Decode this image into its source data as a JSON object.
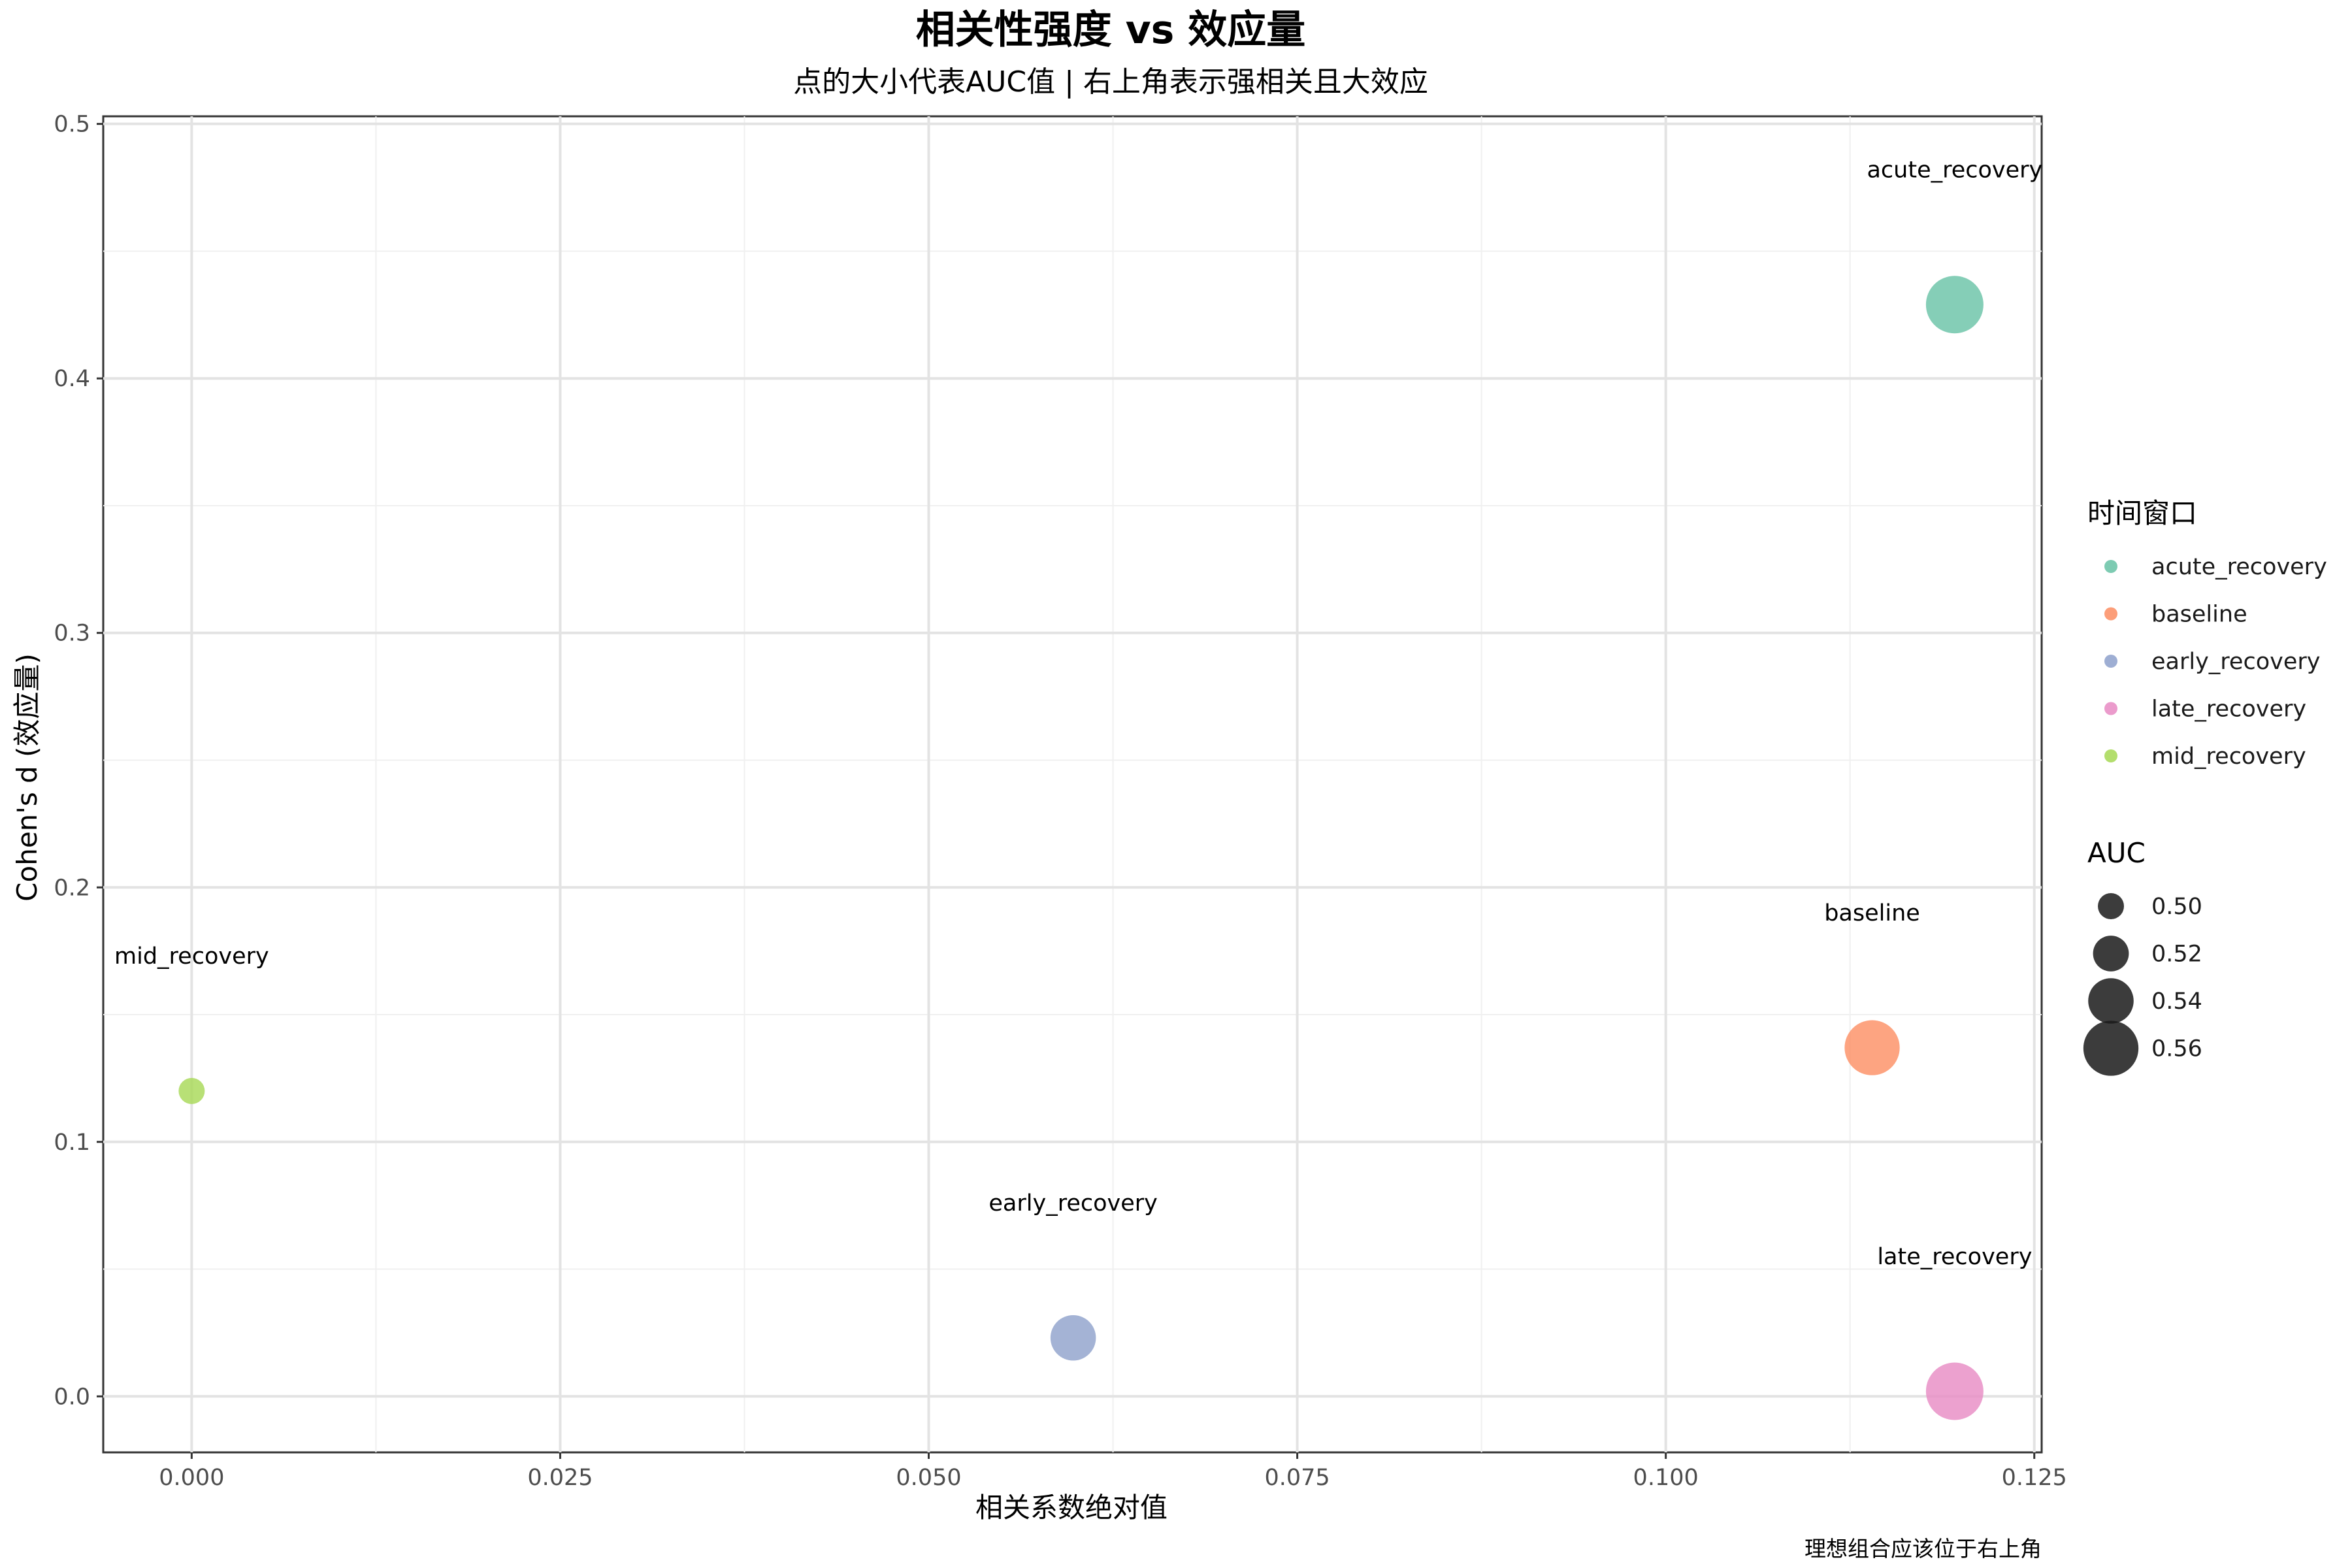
{
  "chart_data": {
    "type": "scatter",
    "title": "相关性强度 vs 效应量",
    "subtitle": "点的大小代表AUC值 | 右上角表示强相关且大效应",
    "xlabel": "相关系数绝对值",
    "ylabel": "Cohen's d (效应量)",
    "caption": "理想组合应该位于右上角",
    "xlim": [
      -0.006,
      0.1255
    ],
    "ylim": [
      -0.022,
      0.503
    ],
    "x_ticks": [
      0.0,
      0.025,
      0.05,
      0.075,
      0.1,
      0.125
    ],
    "x_tick_labels": [
      "0.000",
      "0.025",
      "0.050",
      "0.075",
      "0.100",
      "0.125"
    ],
    "y_ticks": [
      0.0,
      0.1,
      0.2,
      0.3,
      0.4,
      0.5
    ],
    "y_tick_labels": [
      "0.0",
      "0.1",
      "0.2",
      "0.3",
      "0.4",
      "0.5"
    ],
    "grid": true,
    "legend_position": "right",
    "points": [
      {
        "label": "acute_recovery",
        "x": 0.1196,
        "y": 0.429,
        "auc": 0.565,
        "color": "#66c2a5"
      },
      {
        "label": "baseline",
        "x": 0.114,
        "y": 0.137,
        "auc": 0.56,
        "color": "#fc8d62"
      },
      {
        "label": "early_recovery",
        "x": 0.0598,
        "y": 0.023,
        "auc": 0.54,
        "color": "#8da0cb"
      },
      {
        "label": "late_recovery",
        "x": 0.1196,
        "y": 0.002,
        "auc": 0.565,
        "color": "#e78ac3"
      },
      {
        "label": "mid_recovery",
        "x": 0.0,
        "y": 0.12,
        "auc": 0.5,
        "color": "#a6d854"
      }
    ],
    "color_legend": {
      "title": "时间窗口",
      "items": [
        {
          "label": "acute_recovery",
          "color": "#66c2a5"
        },
        {
          "label": "baseline",
          "color": "#fc8d62"
        },
        {
          "label": "early_recovery",
          "color": "#8da0cb"
        },
        {
          "label": "late_recovery",
          "color": "#e78ac3"
        },
        {
          "label": "mid_recovery",
          "color": "#a6d854"
        }
      ]
    },
    "size_legend": {
      "title": "AUC",
      "items": [
        {
          "label": "0.50",
          "value": 0.5
        },
        {
          "label": "0.52",
          "value": 0.52
        },
        {
          "label": "0.54",
          "value": 0.54
        },
        {
          "label": "0.56",
          "value": 0.56
        }
      ]
    }
  }
}
